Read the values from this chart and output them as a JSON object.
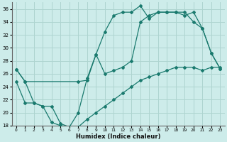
{
  "xlabel": "Humidex (Indice chaleur)",
  "bg_color": "#cdecea",
  "grid_color": "#aed4d0",
  "line_color": "#1a7a6e",
  "xlim": [
    -0.5,
    23.5
  ],
  "ylim": [
    18,
    37
  ],
  "xticks": [
    0,
    1,
    2,
    3,
    4,
    5,
    6,
    7,
    8,
    9,
    10,
    11,
    12,
    13,
    14,
    15,
    16,
    17,
    18,
    19,
    20,
    21,
    22,
    23
  ],
  "yticks": [
    18,
    20,
    22,
    24,
    26,
    28,
    30,
    32,
    34,
    36
  ],
  "line1_x": [
    0,
    1,
    2,
    3,
    4,
    5,
    6,
    7,
    8,
    9,
    10,
    11,
    12,
    13,
    14,
    15,
    16,
    17,
    18,
    19,
    20,
    21,
    22,
    23
  ],
  "line1_y": [
    26.7,
    24.8,
    21.5,
    21.0,
    21.0,
    18.3,
    17.8,
    20.0,
    25.3,
    29.0,
    32.5,
    35.0,
    35.5,
    35.5,
    36.5,
    34.5,
    35.5,
    35.5,
    35.5,
    35.0,
    35.5,
    33.0,
    29.2,
    26.8
  ],
  "line2_x": [
    0,
    1,
    2,
    3,
    4,
    5,
    6,
    7,
    8,
    9,
    10,
    11,
    12,
    13,
    14,
    15,
    16,
    17,
    18,
    19,
    20,
    21,
    22,
    23
  ],
  "line2_y": [
    24.8,
    21.5,
    21.5,
    21.0,
    18.5,
    18.0,
    17.8,
    17.8,
    19.0,
    20.0,
    21.0,
    22.0,
    23.0,
    24.0,
    25.0,
    25.5,
    26.0,
    26.5,
    27.0,
    27.0,
    27.0,
    26.5,
    27.0,
    27.0
  ],
  "line3_x": [
    0,
    1,
    7,
    8,
    9,
    10,
    11,
    12,
    13,
    14,
    15,
    16,
    17,
    18,
    19,
    20,
    21,
    22,
    23
  ],
  "line3_y": [
    26.7,
    24.8,
    24.8,
    25.0,
    29.0,
    26.0,
    26.5,
    27.0,
    28.0,
    34.0,
    35.0,
    35.5,
    35.5,
    35.5,
    35.5,
    34.0,
    33.0,
    29.2,
    26.8
  ]
}
